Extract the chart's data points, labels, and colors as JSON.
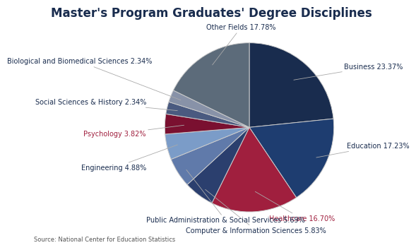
{
  "title": "Master's Program Graduates' Degree Disciplines",
  "source": "Source: National Center for Education Statistics",
  "slices": [
    {
      "label": "Business",
      "value": 23.37,
      "color": "#192c4e"
    },
    {
      "label": "Education",
      "value": 17.23,
      "color": "#1e3d70"
    },
    {
      "label": "Healthcare",
      "value": 16.7,
      "color": "#a01f3e"
    },
    {
      "label": "Computer & Information Sciences",
      "value": 5.83,
      "color": "#2b3f6e"
    },
    {
      "label": "Public Administration & Social Services",
      "value": 5.69,
      "color": "#607aaa"
    },
    {
      "label": "Engineering",
      "value": 4.88,
      "color": "#7b9cc8"
    },
    {
      "label": "Psychology",
      "value": 3.82,
      "color": "#7a1030"
    },
    {
      "label": "Social Sciences & History",
      "value": 2.34,
      "color": "#4a5a80"
    },
    {
      "label": "Biological and Biomedical Sciences",
      "value": 2.34,
      "color": "#8892a8"
    },
    {
      "label": "Other Fields",
      "value": 17.78,
      "color": "#5c6b7a"
    }
  ],
  "label_colors": {
    "Business": "#192c4e",
    "Education": "#192c4e",
    "Healthcare": "#a01f3e",
    "Computer & Information Sciences": "#192c4e",
    "Public Administration & Social Services": "#192c4e",
    "Engineering": "#192c4e",
    "Psychology": "#a01f3e",
    "Social Sciences & History": "#192c4e",
    "Biological and Biomedical Sciences": "#192c4e",
    "Other Fields": "#192c4e"
  },
  "label_texts": {
    "Business": "Business 23.37%",
    "Education": "-Education 17.23%",
    "Healthcare": "Healthcare 16.70%",
    "Computer & Information Sciences": "Computer & Information Sciences 5.83%",
    "Public Administration & Social Services": "Public Administration & Social Services 5.69%",
    "Engineering": "Engineering 4.88%",
    "Psychology": "Psychology 3.82%",
    "Social Sciences & History": "Social Sciences & History 2.34%",
    "Biological and Biomedical Sciences": "Biological and Biomedical Sciences 2.34%",
    "Other Fields": "Other Fields 17.78%"
  },
  "title_fontsize": 12,
  "label_fontsize": 7,
  "source_fontsize": 6,
  "background_color": "#ffffff"
}
